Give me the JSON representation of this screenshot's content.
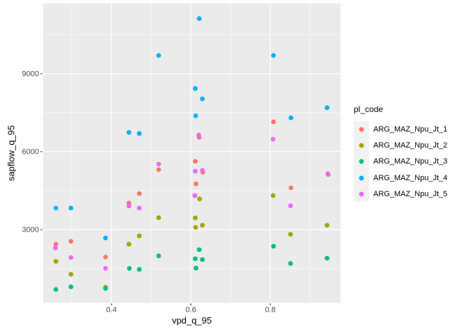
{
  "chart_data": {
    "type": "scatter",
    "title": "",
    "xlabel": "vpd_q_95",
    "ylabel": "sapflow_q_95",
    "legend_title": "pl_code",
    "legend_position": "right",
    "grid": true,
    "panel_bg": "#EBEBEB",
    "grid_color": "#FFFFFF",
    "key_bg": "#F2F2F2",
    "tick_text_color": "#4D4D4D",
    "tick_mark_color": "#333333",
    "x_axis": {
      "tick_values": [
        0.4,
        0.6,
        0.8
      ],
      "tick_labels": [
        "0.4",
        "0.6",
        "0.8"
      ],
      "minor_ticks": [
        0.3,
        0.5,
        0.7,
        0.9
      ],
      "range": [
        0.228,
        0.977
      ]
    },
    "y_axis": {
      "tick_values": [
        3000,
        6000,
        9000
      ],
      "tick_labels": [
        "3000",
        "6000",
        "9000"
      ],
      "minor_ticks": [
        1500,
        4500,
        7500,
        10500
      ],
      "range": [
        190,
        11700
      ]
    },
    "series": [
      {
        "name": "ARG_MAZ_Npu_Jt_1",
        "color": "#F8766D",
        "points": [
          [
            0.26,
            2440
          ],
          [
            0.298,
            2550
          ],
          [
            0.385,
            1950
          ],
          [
            0.444,
            4020
          ],
          [
            0.47,
            4390
          ],
          [
            0.519,
            5310
          ],
          [
            0.611,
            5630
          ],
          [
            0.613,
            4760
          ],
          [
            0.621,
            6550
          ],
          [
            0.63,
            5210
          ],
          [
            0.808,
            7150
          ],
          [
            0.852,
            4610
          ],
          [
            0.945,
            5150
          ]
        ]
      },
      {
        "name": "ARG_MAZ_Npu_Jt_2",
        "color": "#A3A500",
        "points": [
          [
            0.26,
            1780
          ],
          [
            0.298,
            1280
          ],
          [
            0.385,
            780
          ],
          [
            0.444,
            2440
          ],
          [
            0.47,
            2760
          ],
          [
            0.519,
            3460
          ],
          [
            0.611,
            3450
          ],
          [
            0.612,
            3090
          ],
          [
            0.622,
            4180
          ],
          [
            0.629,
            3170
          ],
          [
            0.807,
            4310
          ],
          [
            0.851,
            2820
          ],
          [
            0.943,
            3170
          ]
        ]
      },
      {
        "name": "ARG_MAZ_Npu_Jt_3",
        "color": "#00BF7D",
        "points": [
          [
            0.26,
            700
          ],
          [
            0.298,
            800
          ],
          [
            0.385,
            740
          ],
          [
            0.445,
            1510
          ],
          [
            0.47,
            1470
          ],
          [
            0.519,
            1990
          ],
          [
            0.611,
            1880
          ],
          [
            0.613,
            1520
          ],
          [
            0.621,
            2230
          ],
          [
            0.629,
            1850
          ],
          [
            0.808,
            2360
          ],
          [
            0.851,
            1700
          ],
          [
            0.943,
            1900
          ]
        ]
      },
      {
        "name": "ARG_MAZ_Npu_Jt_4",
        "color": "#00B0F6",
        "points": [
          [
            0.26,
            3830
          ],
          [
            0.298,
            3830
          ],
          [
            0.385,
            2680
          ],
          [
            0.444,
            6740
          ],
          [
            0.47,
            6700
          ],
          [
            0.519,
            9700
          ],
          [
            0.611,
            8430
          ],
          [
            0.612,
            7380
          ],
          [
            0.621,
            11120
          ],
          [
            0.629,
            8030
          ],
          [
            0.808,
            9700
          ],
          [
            0.852,
            7300
          ],
          [
            0.943,
            7690
          ]
        ]
      },
      {
        "name": "ARG_MAZ_Npu_Jt_5",
        "color": "#E76BF3",
        "points": [
          [
            0.259,
            2300
          ],
          [
            0.298,
            1930
          ],
          [
            0.385,
            1510
          ],
          [
            0.444,
            3910
          ],
          [
            0.47,
            3830
          ],
          [
            0.519,
            5520
          ],
          [
            0.61,
            4310
          ],
          [
            0.611,
            5250
          ],
          [
            0.62,
            6640
          ],
          [
            0.629,
            5280
          ],
          [
            0.807,
            6480
          ],
          [
            0.851,
            3920
          ],
          [
            0.946,
            5120
          ]
        ]
      }
    ]
  }
}
